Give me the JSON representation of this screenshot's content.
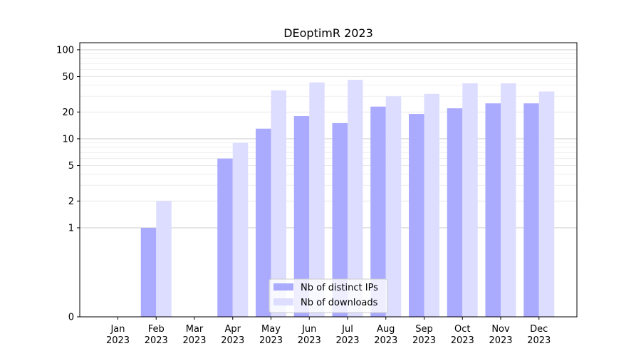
{
  "chart_data": {
    "type": "bar",
    "title": "DEoptimR 2023",
    "xlabel": "",
    "ylabel": "",
    "yscale": "symlog",
    "ylim": [
      0,
      120
    ],
    "ytick_values": [
      0,
      1,
      2,
      5,
      10,
      20,
      50,
      100
    ],
    "ytick_labels": [
      "0",
      "1",
      "2",
      "5",
      "10",
      "20",
      "50",
      "100"
    ],
    "grid": "horizontal",
    "legend_position": "lower-center",
    "categories": [
      {
        "month": "Jan",
        "year": "2023"
      },
      {
        "month": "Feb",
        "year": "2023"
      },
      {
        "month": "Mar",
        "year": "2023"
      },
      {
        "month": "Apr",
        "year": "2023"
      },
      {
        "month": "May",
        "year": "2023"
      },
      {
        "month": "Jun",
        "year": "2023"
      },
      {
        "month": "Jul",
        "year": "2023"
      },
      {
        "month": "Aug",
        "year": "2023"
      },
      {
        "month": "Sep",
        "year": "2023"
      },
      {
        "month": "Oct",
        "year": "2023"
      },
      {
        "month": "Nov",
        "year": "2023"
      },
      {
        "month": "Dec",
        "year": "2023"
      }
    ],
    "series": [
      {
        "name": "Nb of distinct IPs",
        "color": "#aaaaff",
        "values": [
          0,
          1,
          0,
          6,
          13,
          18,
          15,
          23,
          19,
          22,
          25,
          25
        ]
      },
      {
        "name": "Nb of downloads",
        "color": "#ddddff",
        "values": [
          0,
          2,
          0,
          9,
          35,
          43,
          46,
          30,
          32,
          42,
          42,
          34
        ]
      }
    ]
  }
}
